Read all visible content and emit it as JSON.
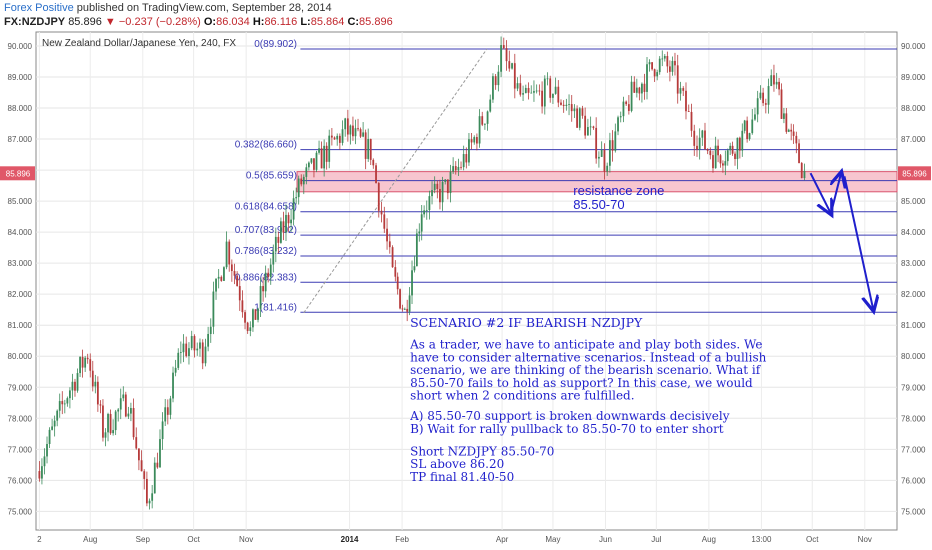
{
  "header": {
    "brand": "Forex Positive",
    "published": "published on TradingView.com, September 28, 2014",
    "symbol": "FX:NZDJPY",
    "last": "85.896",
    "arrow": "▼",
    "change": "−0.237 (−0.28%)",
    "o_label": "O:",
    "o": "86.034",
    "h_label": "H:",
    "h": "86.116",
    "l_label": "L:",
    "l": "85.864",
    "c_label": "C:",
    "c": "85.896"
  },
  "chart_data": {
    "type": "candlestick",
    "title": "New Zealand Dollar/Japanese Yen, 240, FX",
    "ylim": [
      74.4,
      90.45
    ],
    "y_ticks": [
      "75.000",
      "76.000",
      "77.000",
      "78.000",
      "79.000",
      "80.000",
      "81.000",
      "82.000",
      "83.000",
      "84.000",
      "85.000",
      "86.000",
      "87.000",
      "88.000",
      "89.000",
      "90.000"
    ],
    "x_ticks": [
      "2",
      "Aug",
      "Sep",
      "Oct",
      "Nov",
      "2014",
      "Feb",
      "Mar",
      "Apr",
      "May",
      "Jun",
      "Jul",
      "Aug",
      "13:00",
      "Oct",
      "Nov"
    ],
    "x_tick_bold": "2014",
    "last_price_label": "85.896",
    "fib_levels": [
      {
        "label": "0(89.902)",
        "value": 89.902
      },
      {
        "label": "0.382(86.660)",
        "value": 86.66
      },
      {
        "label": "0.5(85.659)",
        "value": 85.659
      },
      {
        "label": "0.618(84.658)",
        "value": 84.658
      },
      {
        "label": "0.707(83.902)",
        "value": 83.902
      },
      {
        "label": "0.786(83.232)",
        "value": 83.232
      },
      {
        "label": "0.886(82.383)",
        "value": 82.383
      },
      {
        "label": "1(81.416)",
        "value": 81.416
      }
    ],
    "resistance_zone": {
      "from": 85.5,
      "to": 85.7,
      "label_line1": "resistance zone",
      "label_line2": "85.50-70"
    },
    "price_path": [
      {
        "date": "2013-07-02",
        "price": 76.3
      },
      {
        "date": "2013-07-20",
        "price": 78.8
      },
      {
        "date": "2013-08-01",
        "price": 80.1
      },
      {
        "date": "2013-08-10",
        "price": 77.6
      },
      {
        "date": "2013-08-25",
        "price": 78.6
      },
      {
        "date": "2013-09-05",
        "price": 75.2
      },
      {
        "date": "2013-09-25",
        "price": 80.3
      },
      {
        "date": "2013-10-08",
        "price": 80.2
      },
      {
        "date": "2013-10-22",
        "price": 83.6
      },
      {
        "date": "2013-11-05",
        "price": 80.8
      },
      {
        "date": "2013-11-20",
        "price": 83.5
      },
      {
        "date": "2013-12-05",
        "price": 85.6
      },
      {
        "date": "2013-12-20",
        "price": 86.6
      },
      {
        "date": "2013-12-31",
        "price": 87.3
      },
      {
        "date": "2014-01-15",
        "price": 86.6
      },
      {
        "date": "2014-01-28",
        "price": 82.6
      },
      {
        "date": "2014-02-04",
        "price": 81.4
      },
      {
        "date": "2014-02-14",
        "price": 84.8
      },
      {
        "date": "2014-02-28",
        "price": 85.4
      },
      {
        "date": "2014-03-14",
        "price": 86.6
      },
      {
        "date": "2014-03-25",
        "price": 88.0
      },
      {
        "date": "2014-04-02",
        "price": 89.8
      },
      {
        "date": "2014-04-15",
        "price": 88.2
      },
      {
        "date": "2014-05-01",
        "price": 88.6
      },
      {
        "date": "2014-05-20",
        "price": 87.6
      },
      {
        "date": "2014-06-02",
        "price": 86.3
      },
      {
        "date": "2014-06-18",
        "price": 88.4
      },
      {
        "date": "2014-07-03",
        "price": 89.5
      },
      {
        "date": "2014-07-12",
        "price": 89.2
      },
      {
        "date": "2014-07-25",
        "price": 87.2
      },
      {
        "date": "2014-08-05",
        "price": 86.5
      },
      {
        "date": "2014-08-15",
        "price": 86.6
      },
      {
        "date": "2014-08-25",
        "price": 87.3
      },
      {
        "date": "2014-09-10",
        "price": 88.9
      },
      {
        "date": "2014-09-20",
        "price": 87.0
      },
      {
        "date": "2014-09-28",
        "price": 85.9
      }
    ],
    "trendline": {
      "from": {
        "date": "2013-12-05",
        "price": 81.4
      },
      "to": {
        "date": "2014-03-23",
        "price": 89.9
      }
    },
    "arrows": [
      {
        "from": {
          "date": "2014-09-30",
          "price": 85.9
        },
        "to": {
          "date": "2014-10-12",
          "price": 84.6
        }
      },
      {
        "from": {
          "date": "2014-10-12",
          "price": 84.6
        },
        "to": {
          "date": "2014-10-18",
          "price": 85.9
        }
      },
      {
        "from": {
          "date": "2014-10-20",
          "price": 85.8
        },
        "to": {
          "date": "2014-11-06",
          "price": 81.5
        }
      }
    ],
    "scenario": {
      "title": "SCENARIO #2 IF BEARISH NZDJPY",
      "para": [
        "As a trader, we have to anticipate and play both sides. We",
        "have to consider alternative scenarios. Instead of a bullish",
        "scenario, we are thinking of the bearish scenario. What if",
        "85.50-70 fails to hold as support? In this case, we would",
        "short when 2 conditions are fulfilled."
      ],
      "cond_a": "A) 85.50-70 support is broken downwards decisively",
      "cond_b": "B) Wait for rally pullback to 85.50-70 to enter short",
      "trade": [
        "Short NZDJPY 85.50-70",
        "SL above 86.20",
        "TP final 81.40-50"
      ]
    },
    "colors": {
      "up": "#3a8a5a",
      "down": "#b63a3a",
      "fib": "#3b3bb3",
      "annotation": "#1f1fcc",
      "zone": "#f7c6cf",
      "zone_border": "#d9566f",
      "price_tag": "#e05768"
    }
  }
}
